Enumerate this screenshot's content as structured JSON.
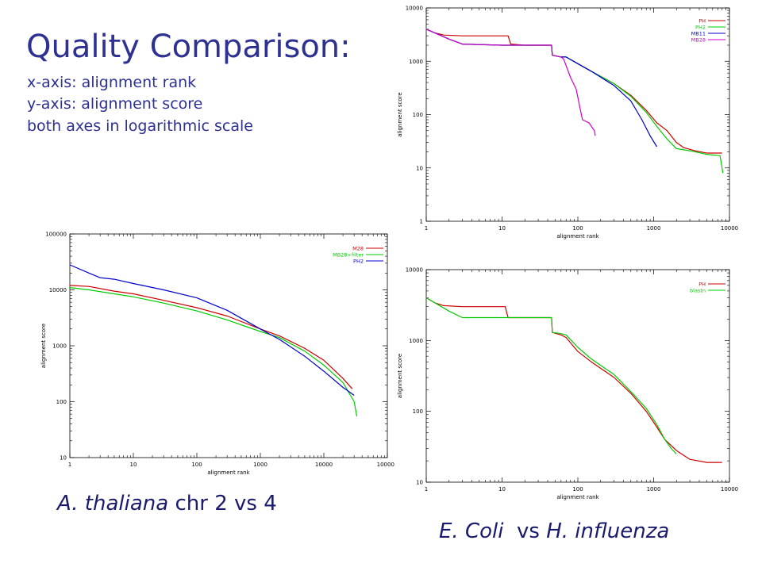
{
  "slide": {
    "title": "Quality Comparison:",
    "lines": [
      "x-axis: alignment rank",
      "y-axis: alignment score",
      "both axes in logarithmic scale"
    ],
    "caption_left": {
      "italic": "A. thaliana",
      "rest": " chr 2 vs 4"
    },
    "caption_right": {
      "italic1": "E. Coli",
      "mid": "  vs ",
      "italic2": "H. influenza"
    }
  },
  "chart_data": [
    {
      "id": "top-right",
      "type": "line",
      "xlabel": "alignment rank",
      "ylabel": "alignment score",
      "xscale": "log",
      "yscale": "log",
      "xlim": [
        1,
        10000
      ],
      "ylim": [
        1,
        10000
      ],
      "x_ticks": [
        "1",
        "10",
        "100",
        "1000",
        "10000"
      ],
      "y_ticks": [
        "1",
        "10",
        "100",
        "1000",
        "10000"
      ],
      "legend_position": "top-right",
      "series": [
        {
          "name": "PH",
          "color": "#cc0000",
          "points": [
            [
              1,
              4000
            ],
            [
              1.3,
              3400
            ],
            [
              1.7,
              3100
            ],
            [
              3,
              3000
            ],
            [
              6,
              3000
            ],
            [
              12,
              3000
            ],
            [
              13,
              2100
            ],
            [
              20,
              2000
            ],
            [
              45,
              2000
            ],
            [
              46,
              1300
            ],
            [
              60,
              1200
            ],
            [
              70,
              1200
            ],
            [
              100,
              900
            ],
            [
              150,
              650
            ],
            [
              300,
              380
            ],
            [
              500,
              230
            ],
            [
              800,
              120
            ],
            [
              1100,
              70
            ],
            [
              1500,
              50
            ],
            [
              2000,
              30
            ],
            [
              2500,
              24
            ],
            [
              3500,
              21
            ],
            [
              5000,
              19
            ],
            [
              8000,
              19
            ]
          ]
        },
        {
          "name": "PH2",
          "color": "#00cc00",
          "points": [
            [
              1,
              4000
            ],
            [
              2,
              2600
            ],
            [
              3,
              2100
            ],
            [
              10,
              2000
            ],
            [
              45,
              2000
            ],
            [
              46,
              1300
            ],
            [
              60,
              1200
            ],
            [
              70,
              1200
            ],
            [
              100,
              900
            ],
            [
              150,
              650
            ],
            [
              300,
              380
            ],
            [
              500,
              220
            ],
            [
              800,
              110
            ],
            [
              1100,
              60
            ],
            [
              1500,
              35
            ],
            [
              2000,
              23
            ],
            [
              3000,
              21
            ],
            [
              5000,
              18
            ],
            [
              7500,
              17
            ],
            [
              8200,
              8
            ]
          ]
        },
        {
          "name": "MB11",
          "color": "#0000cc",
          "points": [
            [
              1,
              4000
            ],
            [
              2,
              2600
            ],
            [
              3,
              2100
            ],
            [
              10,
              2000
            ],
            [
              45,
              2000
            ],
            [
              46,
              1300
            ],
            [
              60,
              1200
            ],
            [
              70,
              1200
            ],
            [
              100,
              900
            ],
            [
              150,
              650
            ],
            [
              300,
              350
            ],
            [
              500,
              180
            ],
            [
              700,
              80
            ],
            [
              900,
              40
            ],
            [
              1100,
              25
            ]
          ]
        },
        {
          "name": "MB28",
          "color": "#cc00cc",
          "points": [
            [
              1,
              4000
            ],
            [
              2,
              2600
            ],
            [
              3,
              2100
            ],
            [
              10,
              2000
            ],
            [
              45,
              2000
            ],
            [
              46,
              1300
            ],
            [
              60,
              1200
            ],
            [
              65,
              1100
            ],
            [
              80,
              500
            ],
            [
              95,
              300
            ],
            [
              105,
              150
            ],
            [
              115,
              80
            ],
            [
              140,
              70
            ],
            [
              165,
              50
            ],
            [
              170,
              40
            ]
          ]
        }
      ]
    },
    {
      "id": "left",
      "type": "line",
      "xlabel": "alignment rank",
      "ylabel": "alignment score",
      "xscale": "log",
      "yscale": "log",
      "xlim": [
        1,
        100000
      ],
      "ylim": [
        10,
        100000
      ],
      "x_ticks": [
        "1",
        "10",
        "100",
        "1000",
        "10000",
        "100000"
      ],
      "y_ticks": [
        "10",
        "100",
        "1000",
        "10000",
        "100000"
      ],
      "legend_position": "top-right",
      "series": [
        {
          "name": "M28",
          "color": "#cc0000",
          "points": [
            [
              1,
              12000
            ],
            [
              2,
              11500
            ],
            [
              5,
              9500
            ],
            [
              10,
              8500
            ],
            [
              30,
              6500
            ],
            [
              100,
              4800
            ],
            [
              300,
              3400
            ],
            [
              1000,
              2000
            ],
            [
              2000,
              1500
            ],
            [
              5000,
              900
            ],
            [
              10000,
              550
            ],
            [
              20000,
              260
            ],
            [
              28000,
              170
            ]
          ]
        },
        {
          "name": "MB28+filter",
          "color": "#00cc00",
          "points": [
            [
              1,
              11000
            ],
            [
              2,
              10000
            ],
            [
              5,
              8500
            ],
            [
              10,
              7500
            ],
            [
              30,
              5800
            ],
            [
              100,
              4200
            ],
            [
              300,
              2900
            ],
            [
              1000,
              1800
            ],
            [
              2000,
              1400
            ],
            [
              5000,
              800
            ],
            [
              10000,
              450
            ],
            [
              20000,
              220
            ],
            [
              30000,
              100
            ],
            [
              33000,
              55
            ]
          ]
        },
        {
          "name": "PH2",
          "color": "#0000cc",
          "points": [
            [
              1,
              28000
            ],
            [
              2,
              20000
            ],
            [
              3,
              16500
            ],
            [
              5,
              15500
            ],
            [
              10,
              13000
            ],
            [
              30,
              10000
            ],
            [
              100,
              7200
            ],
            [
              300,
              4300
            ],
            [
              1000,
              2000
            ],
            [
              2000,
              1300
            ],
            [
              5000,
              650
            ],
            [
              10000,
              350
            ],
            [
              20000,
              180
            ],
            [
              30000,
              130
            ]
          ]
        }
      ]
    },
    {
      "id": "bottom-right",
      "type": "line",
      "xlabel": "alignment rank",
      "ylabel": "alignment score",
      "xscale": "log",
      "yscale": "log",
      "xlim": [
        1,
        10000
      ],
      "ylim": [
        10,
        10000
      ],
      "x_ticks": [
        "1",
        "10",
        "100",
        "1000",
        "10000"
      ],
      "y_ticks": [
        "10",
        "100",
        "1000",
        "10000"
      ],
      "legend_position": "top-right",
      "series": [
        {
          "name": "PH",
          "color": "#cc0000",
          "points": [
            [
              1,
              4000
            ],
            [
              1.3,
              3400
            ],
            [
              1.7,
              3100
            ],
            [
              3,
              3000
            ],
            [
              6,
              3000
            ],
            [
              11,
              3000
            ],
            [
              12,
              2100
            ],
            [
              20,
              2100
            ],
            [
              45,
              2100
            ],
            [
              46,
              1300
            ],
            [
              60,
              1200
            ],
            [
              70,
              1100
            ],
            [
              100,
              700
            ],
            [
              150,
              500
            ],
            [
              300,
              300
            ],
            [
              500,
              180
            ],
            [
              800,
              100
            ],
            [
              1100,
              60
            ],
            [
              1400,
              40
            ],
            [
              2000,
              28
            ],
            [
              3000,
              21
            ],
            [
              5000,
              19
            ],
            [
              8000,
              19
            ]
          ]
        },
        {
          "name": "blastn",
          "color": "#00cc00",
          "points": [
            [
              1,
              4000
            ],
            [
              2,
              2600
            ],
            [
              3,
              2100
            ],
            [
              10,
              2100
            ],
            [
              45,
              2100
            ],
            [
              46,
              1300
            ],
            [
              60,
              1250
            ],
            [
              70,
              1200
            ],
            [
              100,
              800
            ],
            [
              150,
              550
            ],
            [
              300,
              330
            ],
            [
              500,
              190
            ],
            [
              800,
              110
            ],
            [
              1100,
              65
            ],
            [
              1400,
              40
            ],
            [
              1700,
              30
            ],
            [
              2000,
              25
            ]
          ]
        }
      ]
    }
  ]
}
